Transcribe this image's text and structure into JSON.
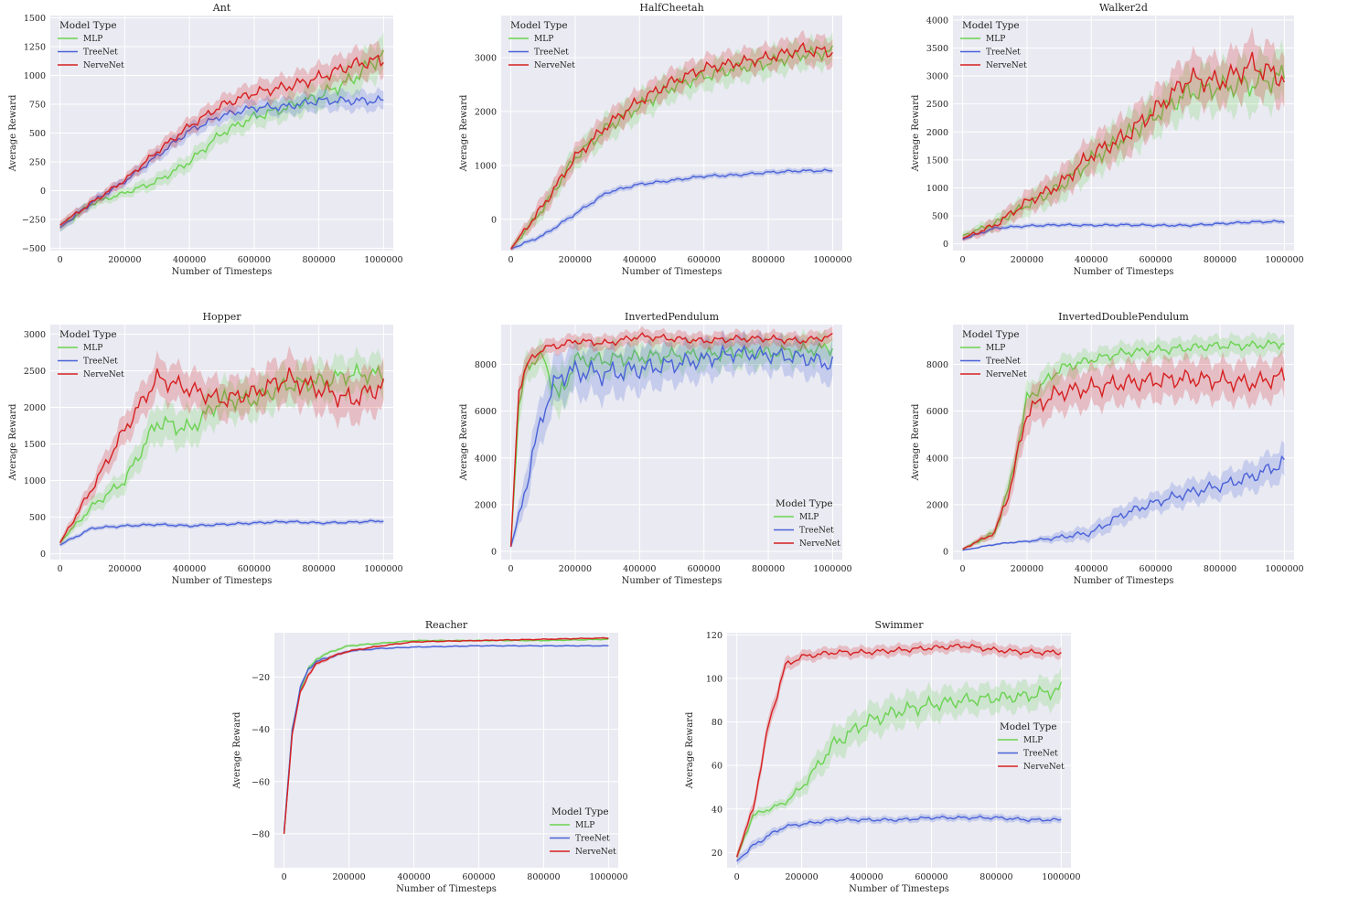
{
  "figure": {
    "legend_title": "Model Type",
    "colors": {
      "MLP": "#6ad350",
      "TreeNet": "#4a62d8",
      "NerveNet": "#d62020",
      "panel_bg": "#eaeaf2",
      "grid": "#ffffff"
    }
  },
  "chart_data": [
    {
      "type": "line",
      "title": "Ant",
      "xlabel": "Number of Timesteps",
      "ylabel": "Average Reward",
      "xlim": [
        -30000,
        1030000
      ],
      "ylim": [
        -520,
        1520
      ],
      "xticks": [
        0,
        200000,
        400000,
        600000,
        800000,
        1000000
      ],
      "yticks": [
        -500,
        -250,
        0,
        250,
        500,
        750,
        1000,
        1250,
        1500
      ],
      "ytick_labels": [
        "−500",
        "−250",
        "0",
        "250",
        "500",
        "750",
        "1000",
        "1250",
        "1500"
      ],
      "legend": "top-left",
      "x": [
        0,
        100000,
        200000,
        300000,
        400000,
        500000,
        600000,
        700000,
        800000,
        900000,
        1000000
      ],
      "series": [
        {
          "name": "MLP",
          "values": [
            -320,
            -110,
            -20,
            80,
            250,
            500,
            640,
            720,
            820,
            960,
            1190
          ],
          "band": [
            40,
            40,
            40,
            60,
            70,
            80,
            90,
            100,
            110,
            140,
            160
          ]
        },
        {
          "name": "TreeNet",
          "values": [
            -320,
            -100,
            80,
            300,
            520,
            650,
            720,
            730,
            780,
            780,
            780
          ],
          "band": [
            40,
            40,
            40,
            50,
            60,
            60,
            70,
            70,
            80,
            80,
            80
          ]
        },
        {
          "name": "NerveNet",
          "values": [
            -300,
            -100,
            90,
            340,
            560,
            740,
            850,
            900,
            980,
            1090,
            1140
          ],
          "band": [
            40,
            40,
            40,
            60,
            70,
            80,
            90,
            100,
            110,
            120,
            130
          ]
        }
      ]
    },
    {
      "type": "line",
      "title": "HalfCheetah",
      "xlabel": "Number of Timesteps",
      "ylabel": "Average Reward",
      "xlim": [
        -30000,
        1030000
      ],
      "ylim": [
        -580,
        3780
      ],
      "xticks": [
        0,
        200000,
        400000,
        600000,
        800000,
        1000000
      ],
      "yticks": [
        0,
        1000,
        2000,
        3000
      ],
      "ytick_labels": [
        "0",
        "1000",
        "2000",
        "3000"
      ],
      "legend": "top-left",
      "x": [
        0,
        100000,
        200000,
        300000,
        400000,
        500000,
        600000,
        700000,
        800000,
        900000,
        1000000
      ],
      "series": [
        {
          "name": "MLP",
          "values": [
            -550,
            200,
            1150,
            1700,
            2100,
            2450,
            2650,
            2800,
            2900,
            3050,
            3100
          ],
          "band": [
            60,
            150,
            200,
            250,
            250,
            250,
            250,
            250,
            250,
            250,
            250
          ]
        },
        {
          "name": "TreeNet",
          "values": [
            -550,
            -300,
            100,
            500,
            650,
            720,
            800,
            820,
            870,
            900,
            900
          ],
          "band": [
            40,
            50,
            60,
            60,
            50,
            50,
            50,
            50,
            50,
            50,
            50
          ]
        },
        {
          "name": "NerveNet",
          "values": [
            -550,
            250,
            1150,
            1750,
            2200,
            2550,
            2800,
            2900,
            3000,
            3150,
            3100
          ],
          "band": [
            60,
            180,
            200,
            220,
            220,
            220,
            220,
            220,
            220,
            250,
            250
          ]
        }
      ]
    },
    {
      "type": "line",
      "title": "Walker2d",
      "xlabel": "Number of Timesteps",
      "ylabel": "Average Reward",
      "xlim": [
        -30000,
        1030000
      ],
      "ylim": [
        -120,
        4080
      ],
      "xticks": [
        0,
        200000,
        400000,
        600000,
        800000,
        1000000
      ],
      "yticks": [
        0,
        500,
        1000,
        1500,
        2000,
        2500,
        3000,
        3500,
        4000
      ],
      "ytick_labels": [
        "0",
        "500",
        "1000",
        "1500",
        "2000",
        "2500",
        "3000",
        "3500",
        "4000"
      ],
      "legend": "top-left",
      "x": [
        0,
        100000,
        200000,
        300000,
        400000,
        500000,
        600000,
        700000,
        800000,
        900000,
        1000000
      ],
      "series": [
        {
          "name": "MLP",
          "values": [
            150,
            360,
            700,
            1000,
            1500,
            1900,
            2300,
            2700,
            2800,
            2850,
            3000
          ],
          "band": [
            60,
            120,
            180,
            250,
            300,
            350,
            350,
            400,
            400,
            450,
            450
          ]
        },
        {
          "name": "TreeNet",
          "values": [
            80,
            280,
            320,
            340,
            330,
            340,
            330,
            330,
            360,
            390,
            400
          ],
          "band": [
            30,
            40,
            40,
            40,
            40,
            40,
            40,
            40,
            40,
            40,
            40
          ]
        },
        {
          "name": "NerveNet",
          "values": [
            100,
            330,
            750,
            1050,
            1600,
            1900,
            2400,
            2950,
            2900,
            3200,
            2950
          ],
          "band": [
            60,
            120,
            180,
            250,
            300,
            350,
            350,
            400,
            400,
            450,
            450
          ]
        }
      ]
    },
    {
      "type": "line",
      "title": "Hopper",
      "xlabel": "Number of Timesteps",
      "ylabel": "Average Reward",
      "xlim": [
        -30000,
        1030000
      ],
      "ylim": [
        -80,
        3130
      ],
      "xticks": [
        0,
        200000,
        400000,
        600000,
        800000,
        1000000
      ],
      "yticks": [
        0,
        500,
        1000,
        1500,
        2000,
        2500,
        3000
      ],
      "ytick_labels": [
        "0",
        "500",
        "1000",
        "1500",
        "2000",
        "2500",
        "3000"
      ],
      "legend": "top-left",
      "x": [
        0,
        100000,
        200000,
        300000,
        400000,
        500000,
        600000,
        700000,
        800000,
        900000,
        1000000
      ],
      "series": [
        {
          "name": "MLP",
          "values": [
            150,
            650,
            1000,
            1800,
            1700,
            2100,
            2100,
            2300,
            2350,
            2450,
            2450
          ],
          "band": [
            40,
            100,
            150,
            250,
            250,
            250,
            250,
            250,
            250,
            250,
            250
          ]
        },
        {
          "name": "TreeNet",
          "values": [
            120,
            350,
            380,
            400,
            380,
            400,
            420,
            440,
            420,
            430,
            450
          ],
          "band": [
            30,
            30,
            30,
            30,
            30,
            30,
            30,
            30,
            30,
            30,
            30
          ]
        },
        {
          "name": "NerveNet",
          "values": [
            150,
            900,
            1700,
            2400,
            2250,
            2100,
            2200,
            2400,
            2250,
            2100,
            2300
          ],
          "band": [
            40,
            120,
            200,
            250,
            250,
            250,
            250,
            300,
            300,
            300,
            300
          ]
        }
      ]
    },
    {
      "type": "line",
      "title": "InvertedPendulum",
      "xlabel": "Number of Timesteps",
      "ylabel": "Average Reward",
      "xlim": [
        -30000,
        1030000
      ],
      "ylim": [
        -350,
        9700
      ],
      "xticks": [
        0,
        200000,
        400000,
        600000,
        800000,
        1000000
      ],
      "yticks": [
        0,
        2000,
        4000,
        6000,
        8000
      ],
      "ytick_labels": [
        "0",
        "2000",
        "4000",
        "6000",
        "8000"
      ],
      "legend": "bottom-right",
      "x": [
        0,
        25000,
        50000,
        100000,
        150000,
        200000,
        300000,
        400000,
        500000,
        600000,
        700000,
        800000,
        900000,
        1000000
      ],
      "series": [
        {
          "name": "MLP",
          "values": [
            200,
            6000,
            8000,
            8300,
            6500,
            8200,
            8200,
            8300,
            8400,
            8400,
            8500,
            8500,
            8600,
            8700
          ],
          "band": [
            100,
            800,
            600,
            600,
            1000,
            700,
            700,
            700,
            600,
            600,
            600,
            600,
            600,
            600
          ]
        },
        {
          "name": "TreeNet",
          "values": [
            200,
            1500,
            3000,
            6000,
            7500,
            7700,
            7600,
            7800,
            8000,
            8200,
            8500,
            8400,
            8300,
            8000
          ],
          "band": [
            100,
            500,
            800,
            1000,
            1000,
            1000,
            1000,
            900,
            800,
            800,
            700,
            700,
            700,
            800
          ]
        },
        {
          "name": "NerveNet",
          "values": [
            200,
            7000,
            8000,
            8700,
            8800,
            9000,
            8900,
            9200,
            9100,
            9000,
            9100,
            9100,
            9000,
            9200
          ],
          "band": [
            100,
            600,
            400,
            300,
            300,
            300,
            300,
            300,
            300,
            300,
            300,
            300,
            300,
            300
          ]
        }
      ]
    },
    {
      "type": "line",
      "title": "InvertedDoublePendulum",
      "xlabel": "Number of Timesteps",
      "ylabel": "Average Reward",
      "xlim": [
        -30000,
        1030000
      ],
      "ylim": [
        -350,
        9700
      ],
      "xticks": [
        0,
        200000,
        400000,
        600000,
        800000,
        1000000
      ],
      "yticks": [
        0,
        2000,
        4000,
        6000,
        8000
      ],
      "ytick_labels": [
        "0",
        "2000",
        "4000",
        "6000",
        "8000"
      ],
      "legend": "top-left",
      "x": [
        0,
        100000,
        150000,
        200000,
        300000,
        400000,
        500000,
        600000,
        700000,
        800000,
        900000,
        1000000
      ],
      "series": [
        {
          "name": "MLP",
          "values": [
            100,
            800,
            3000,
            6500,
            7800,
            8200,
            8500,
            8600,
            8700,
            8800,
            8800,
            8900
          ],
          "band": [
            50,
            200,
            500,
            600,
            500,
            400,
            400,
            400,
            400,
            400,
            400,
            400
          ]
        },
        {
          "name": "TreeNet",
          "values": [
            50,
            300,
            380,
            430,
            600,
            800,
            1600,
            2100,
            2500,
            2800,
            3200,
            3800
          ],
          "band": [
            30,
            50,
            50,
            60,
            200,
            300,
            400,
            400,
            500,
            500,
            600,
            700
          ]
        },
        {
          "name": "NerveNet",
          "values": [
            100,
            800,
            2800,
            6000,
            6800,
            7000,
            7200,
            7300,
            7400,
            7300,
            7200,
            7500
          ],
          "band": [
            50,
            200,
            600,
            800,
            800,
            800,
            800,
            800,
            800,
            800,
            800,
            800
          ]
        }
      ]
    },
    {
      "type": "line",
      "title": "Reacher",
      "xlabel": "Number of Timesteps",
      "ylabel": "Average Reward",
      "xlim": [
        -30000,
        1030000
      ],
      "ylim": [
        -93,
        -3
      ],
      "xticks": [
        0,
        200000,
        400000,
        600000,
        800000,
        1000000
      ],
      "yticks": [
        -80,
        -60,
        -40,
        -20
      ],
      "ytick_labels": [
        "−80",
        "−60",
        "−40",
        "−20"
      ],
      "legend": "bottom-right",
      "x": [
        0,
        25000,
        50000,
        75000,
        100000,
        150000,
        200000,
        300000,
        400000,
        600000,
        800000,
        1000000
      ],
      "series": [
        {
          "name": "MLP",
          "values": [
            -80,
            -40,
            -25,
            -17,
            -13,
            -10,
            -8,
            -7,
            -6,
            -6,
            -6,
            -5.5
          ],
          "band": [
            1,
            1,
            1,
            1,
            0.8,
            0.6,
            0.5,
            0.4,
            0.3,
            0.3,
            0.3,
            0.3
          ]
        },
        {
          "name": "TreeNet",
          "values": [
            -79,
            -40,
            -24,
            -17,
            -14,
            -12,
            -10,
            -9,
            -8.5,
            -8,
            -8,
            -8
          ],
          "band": [
            1,
            1,
            1,
            1,
            0.8,
            0.6,
            0.5,
            0.4,
            0.3,
            0.3,
            0.3,
            0.3
          ]
        },
        {
          "name": "NerveNet",
          "values": [
            -80,
            -42,
            -26,
            -19,
            -15,
            -12,
            -10,
            -8,
            -6.5,
            -6,
            -5.5,
            -5
          ],
          "band": [
            1,
            1,
            1,
            1,
            0.8,
            0.6,
            0.5,
            0.4,
            0.3,
            0.3,
            0.3,
            0.3
          ]
        }
      ]
    },
    {
      "type": "line",
      "title": "Swimmer",
      "xlabel": "Number of Timesteps",
      "ylabel": "Average Reward",
      "xlim": [
        -30000,
        1030000
      ],
      "ylim": [
        13,
        121
      ],
      "xticks": [
        0,
        200000,
        400000,
        600000,
        800000,
        1000000
      ],
      "yticks": [
        20,
        40,
        60,
        80,
        100,
        120
      ],
      "ytick_labels": [
        "20",
        "40",
        "60",
        "80",
        "100",
        "120"
      ],
      "legend": "right",
      "x": [
        0,
        50000,
        100000,
        150000,
        200000,
        300000,
        400000,
        500000,
        600000,
        700000,
        800000,
        900000,
        1000000
      ],
      "series": [
        {
          "name": "MLP",
          "values": [
            18,
            37,
            40,
            43,
            50,
            70,
            80,
            85,
            88,
            90,
            91,
            92,
            95
          ],
          "band": [
            2,
            2,
            2,
            2,
            4,
            7,
            7,
            7,
            7,
            6,
            6,
            6,
            7
          ]
        },
        {
          "name": "TreeNet",
          "values": [
            16,
            23,
            28,
            32,
            33,
            35,
            35,
            35,
            36,
            36,
            36,
            35,
            35
          ],
          "band": [
            2,
            2,
            2,
            1.5,
            1.5,
            1.5,
            1.5,
            1.5,
            1.5,
            1.5,
            1.5,
            1.5,
            1.5
          ]
        },
        {
          "name": "NerveNet",
          "values": [
            18,
            40,
            80,
            106,
            110,
            112,
            112,
            113,
            114,
            115,
            113,
            112,
            112
          ],
          "band": [
            2,
            3,
            4,
            3,
            2.5,
            2.5,
            2.5,
            2.5,
            2.5,
            2.5,
            2.5,
            2.5,
            2.5
          ]
        }
      ]
    }
  ]
}
